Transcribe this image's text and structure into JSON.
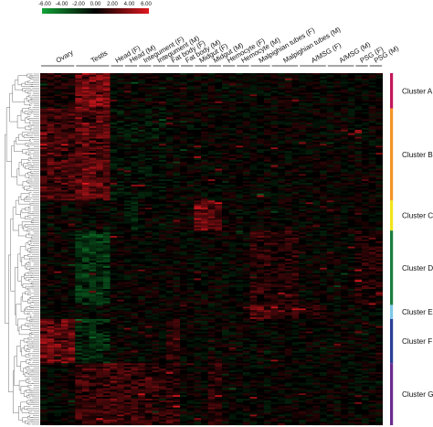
{
  "chart_data": {
    "type": "heatmap",
    "title": "",
    "color_scale": {
      "ticks": [
        "-6.00",
        "-4.00",
        "-2.00",
        "0.00",
        "2.00",
        "4.00",
        "6.00"
      ],
      "min": -6,
      "max": 6,
      "low_color": "#13a338",
      "mid_color": "#000000",
      "high_color": "#e0181f"
    },
    "columns": [
      {
        "label": "Ovary",
        "n": 5
      },
      {
        "label": "Testis",
        "n": 5
      },
      {
        "label": "Head (F)",
        "n": 2
      },
      {
        "label": "Head (M)",
        "n": 2
      },
      {
        "label": "Integument (F)",
        "n": 2
      },
      {
        "label": "Integument (M)",
        "n": 2
      },
      {
        "label": "Fat body (F)",
        "n": 2
      },
      {
        "label": "Fat body (M)",
        "n": 2
      },
      {
        "label": "Midgut (F)",
        "n": 2
      },
      {
        "label": "Midgut (M)",
        "n": 2
      },
      {
        "label": "Hemocyte (F)",
        "n": 2
      },
      {
        "label": "Hemocyte (M)",
        "n": 2
      },
      {
        "label": "Malpighian tubes (F)",
        "n": 3
      },
      {
        "label": "Malpighian tubes (M)",
        "n": 4
      },
      {
        "label": "A/MSG (F)",
        "n": 4
      },
      {
        "label": "A/MSG (M)",
        "n": 4
      },
      {
        "label": "PSG (F)",
        "n": 2
      },
      {
        "label": "PSG (M)",
        "n": 2
      }
    ],
    "clusters": [
      {
        "name": "Cluster A",
        "color": "#c2185b",
        "rows": 20
      },
      {
        "name": "Cluster B",
        "color": "#f39325",
        "rows": 52
      },
      {
        "name": "Cluster C",
        "color": "#f0e51b",
        "rows": 17
      },
      {
        "name": "Cluster D",
        "color": "#1b7d3d",
        "rows": 42
      },
      {
        "name": "Cluster E",
        "color": "#7fc7e6",
        "rows": 8
      },
      {
        "name": "Cluster F",
        "color": "#2b3f96",
        "rows": 25
      },
      {
        "name": "Cluster G",
        "color": "#6a2c8e",
        "rows": 35
      }
    ],
    "legend_placement": "top-left",
    "grid": false
  }
}
